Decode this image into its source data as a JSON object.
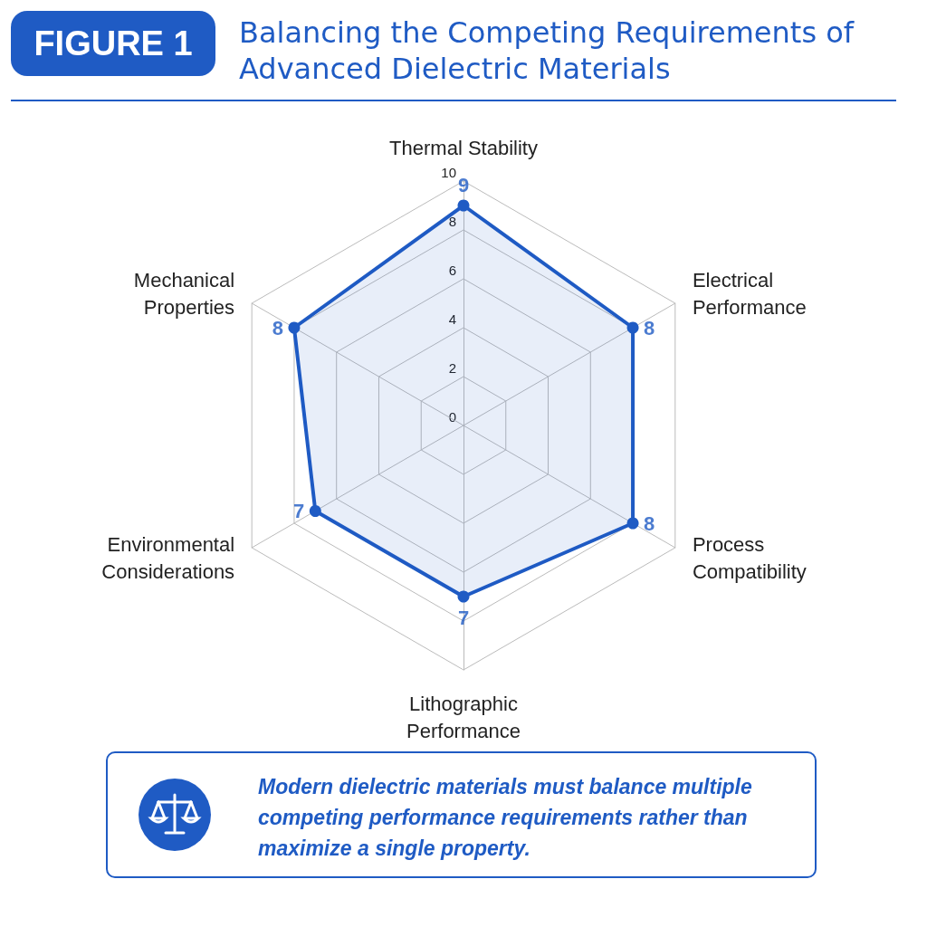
{
  "chart_data": {
    "type": "radar",
    "title": "Balancing the Competing Requirements of Advanced Dielectric Materials",
    "annotations": [
      "FIGURE 1",
      "Modern dielectric materials must balance multiple competing performance requirements rather than maximize a single property."
    ],
    "categories": [
      "Thermal Stability",
      "Electrical Performance",
      "Process Compatibility",
      "Lithographic Performance",
      "Environmental Considerations",
      "Mechanical Properties"
    ],
    "series": [
      {
        "color": "#1f5bc4",
        "values": [
          9,
          8,
          8,
          7,
          7,
          8
        ]
      }
    ],
    "ylim": [
      0,
      10
    ],
    "yticks": [
      0,
      2,
      4,
      6,
      8,
      10
    ],
    "grid": true,
    "data_labels": true,
    "marker": "circle"
  }
}
